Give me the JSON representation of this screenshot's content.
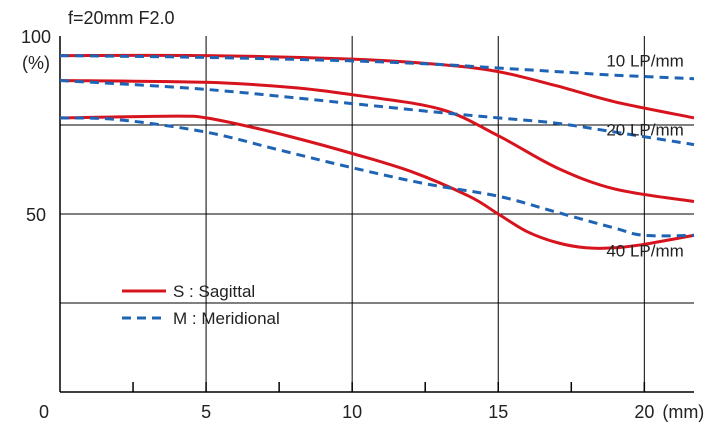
{
  "chart_data": {
    "type": "line",
    "title": "f=20mm   F2.0",
    "x_unit_label": "(mm)",
    "y_unit_label": "(%)",
    "xlim": [
      0,
      21.7
    ],
    "ylim": [
      0,
      100
    ],
    "x_ticks": [
      0,
      5,
      10,
      15,
      20
    ],
    "x_tick_labels": [
      "0",
      "5",
      "10",
      "15",
      "20"
    ],
    "x_minor_ticks": [
      2.5,
      7.5,
      12.5,
      17.5
    ],
    "y_ticks": [
      100,
      50
    ],
    "y_tick_labels": [
      "100",
      "50"
    ],
    "grid_y": [
      75,
      50,
      25
    ],
    "grid_x": [
      5,
      10,
      15,
      20
    ],
    "colors": {
      "sagittal": "#d7141e",
      "meridional": "#1f64b4",
      "grid": "#000000"
    },
    "legend": {
      "sagittal": "S : Sagittal",
      "meridional": "M : Meridional",
      "placement": "lower-left"
    },
    "series_labels": [
      {
        "text": "10 LP/mm",
        "x": 18.7,
        "y": 91.5
      },
      {
        "text": "20 LP/mm",
        "x": 18.7,
        "y": 72
      },
      {
        "text": "40 LP/mm",
        "x": 18.7,
        "y": 38
      }
    ],
    "series": [
      {
        "name": "10 LP/mm S",
        "type": "sagittal",
        "x": [
          0,
          5,
          10,
          13,
          15,
          17,
          19,
          21.7
        ],
        "y": [
          94.5,
          94.5,
          93.5,
          92,
          90,
          86,
          81.5,
          77
        ]
      },
      {
        "name": "10 LP/mm M",
        "type": "meridional",
        "x": [
          0,
          5,
          10,
          13,
          15,
          17,
          19,
          21.7
        ],
        "y": [
          94.5,
          94,
          93,
          92,
          91,
          90,
          89,
          88
        ]
      },
      {
        "name": "20 LP/mm S",
        "type": "sagittal",
        "x": [
          0,
          5,
          8,
          10,
          13,
          15,
          17,
          19,
          21.7
        ],
        "y": [
          87.5,
          87,
          85.5,
          83.5,
          79.5,
          72,
          63,
          57,
          53.5
        ]
      },
      {
        "name": "20 LP/mm M",
        "type": "meridional",
        "x": [
          0,
          5,
          10,
          13,
          15,
          17,
          19,
          21.7
        ],
        "y": [
          87.5,
          85,
          81,
          78.5,
          77,
          75.5,
          73,
          69.5
        ]
      },
      {
        "name": "40 LP/mm S",
        "type": "sagittal",
        "x": [
          0,
          4,
          5,
          6.5,
          8,
          10,
          12,
          14,
          15,
          16,
          17,
          18,
          19,
          20,
          21.7
        ],
        "y": [
          77,
          77.5,
          77,
          74.5,
          71.5,
          67,
          62,
          55,
          50,
          45,
          42,
          40.5,
          40.5,
          41.5,
          44
        ]
      },
      {
        "name": "40 LP/mm M",
        "type": "meridional",
        "x": [
          0,
          2,
          5,
          7.5,
          10,
          12.5,
          15,
          17,
          19,
          20,
          21.7
        ],
        "y": [
          77,
          76.5,
          73,
          68,
          63,
          58.5,
          55,
          50.5,
          46,
          44,
          44
        ]
      }
    ]
  }
}
